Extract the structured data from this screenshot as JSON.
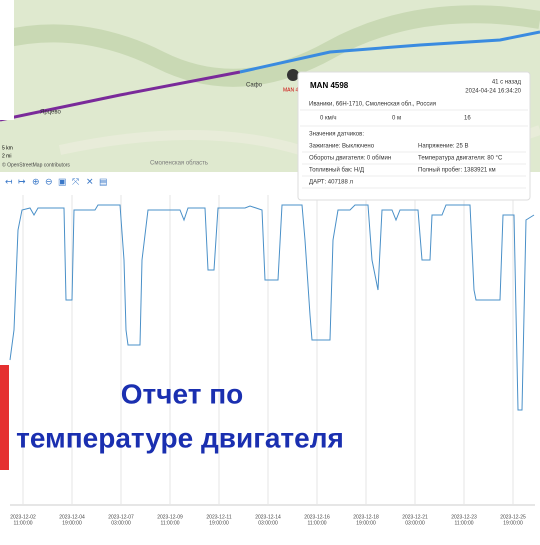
{
  "map": {
    "scale_km": "5 km",
    "scale_mi": "2 mi",
    "attribution": "© OpenStreetMap contributors",
    "region": "Смоленская область",
    "town_1": "Ярцево",
    "town_2": "Сафо",
    "vehicle_tag": "MAN 4"
  },
  "popup": {
    "title": "MAN 4598",
    "ago": "41 с назад",
    "timestamp": "2024-04-24 16:34:20",
    "address": "Иваники, 66Н-1710, Смоленская обл., Россия",
    "speed": "0 км/ч",
    "altitude": "0 м",
    "satellites": "16",
    "sensors_title": "Значения датчиков:",
    "sensors": [
      [
        "Зажигание: Выключено",
        "Напряжение: 25 В"
      ],
      [
        "Обороты двигателя: 0 об/мин",
        "Температура двигателя: 80 °C"
      ],
      [
        "Топливный бак: Н/Д",
        "Полный пробег: 1383921 км"
      ],
      [
        "ДАРТ: 407188 л",
        ""
      ]
    ]
  },
  "chart": {
    "x_ticks": [
      [
        "2023-12-02",
        "11:00:00"
      ],
      [
        "2023-12-04",
        "19:00:00"
      ],
      [
        "2023-12-07",
        "03:00:00"
      ],
      [
        "2023-12-09",
        "11:00:00"
      ],
      [
        "2023-12-11",
        "19:00:00"
      ],
      [
        "2023-12-14",
        "03:00:00"
      ],
      [
        "2023-12-16",
        "11:00:00"
      ],
      [
        "2023-12-18",
        "19:00:00"
      ],
      [
        "2023-12-21",
        "03:00:00"
      ],
      [
        "2023-12-23",
        "11:00:00"
      ],
      [
        "2023-12-25",
        "19:00:00"
      ]
    ]
  },
  "overlay": {
    "line_1": "Отчет по",
    "line_2": "температуре двигателя"
  }
}
